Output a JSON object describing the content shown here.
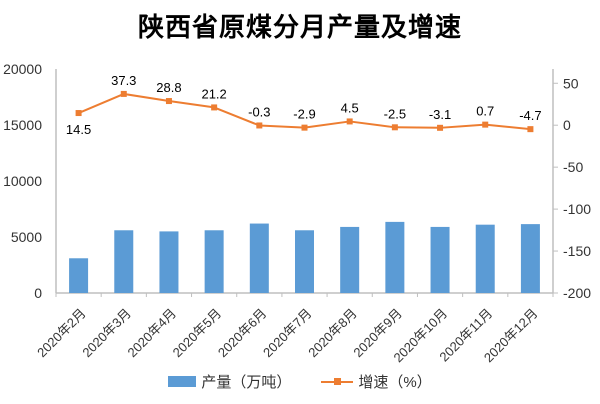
{
  "chart_data": {
    "type": "combo-bar-line",
    "title": "陕西省原煤分月产量及增速",
    "categories": [
      "2020年2月",
      "2020年3月",
      "2020年4月",
      "2020年5月",
      "2020年6月",
      "2020年7月",
      "2020年8月",
      "2020年9月",
      "2020年10月",
      "2020年11月",
      "2020年12月"
    ],
    "series": [
      {
        "name": "产量（万吨）",
        "chart_type": "bar",
        "axis": "left",
        "color": "#5B9BD5",
        "values": [
          3100,
          5600,
          5500,
          5600,
          6200,
          5600,
          5900,
          6350,
          5900,
          6100,
          6150
        ]
      },
      {
        "name": "增速（%）",
        "chart_type": "line",
        "axis": "right",
        "color": "#ED7D31",
        "data_labels": true,
        "values": [
          14.5,
          37.3,
          28.8,
          21.2,
          -0.3,
          -2.9,
          4.5,
          -2.5,
          -3.1,
          0.7,
          -4.7
        ]
      }
    ],
    "left_axis": {
      "min": 0,
      "max": 20000,
      "ticks": [
        0,
        5000,
        10000,
        15000,
        20000
      ]
    },
    "right_axis": {
      "min": -200,
      "max": 67,
      "ticks": [
        50,
        0,
        -50,
        -100,
        -150,
        -200
      ]
    },
    "grid": false,
    "legend_position": "bottom",
    "colors": {
      "bar": "#5B9BD5",
      "line": "#ED7D31",
      "axis_line": "#BFBFBF",
      "tick_text": "#333333",
      "label_text": "#000000",
      "title_text": "#000000"
    }
  }
}
